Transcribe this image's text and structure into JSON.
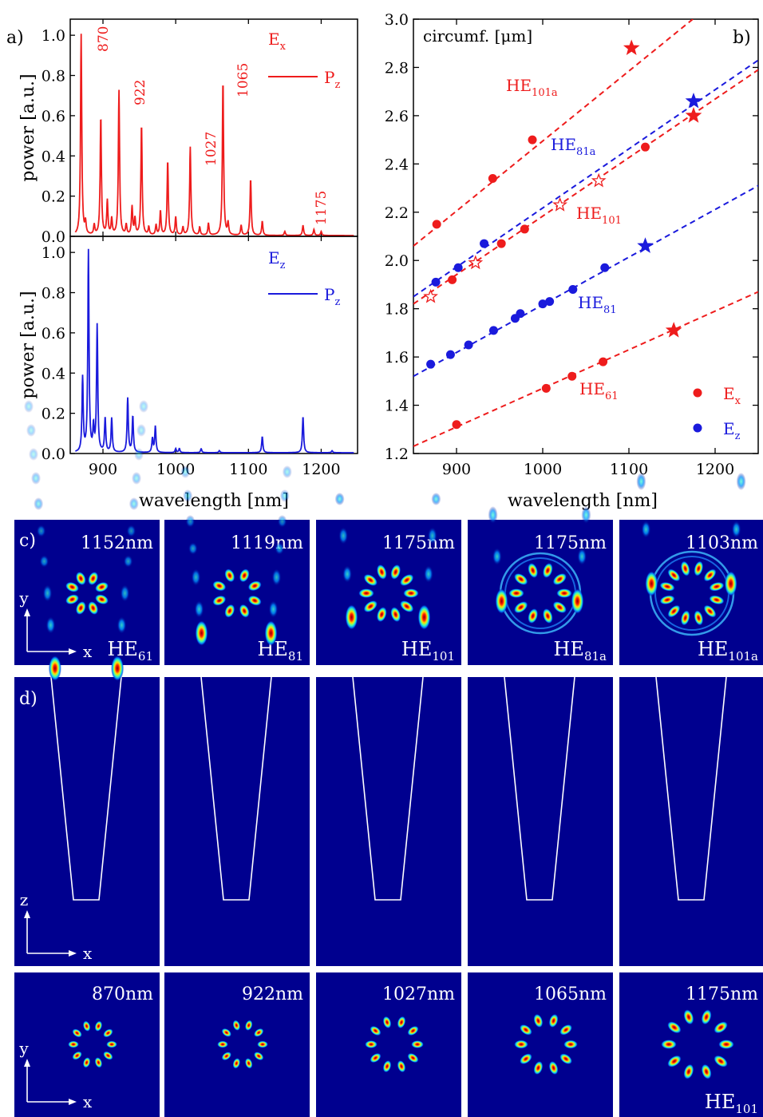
{
  "colors": {
    "red": "#ee1c1c",
    "blue": "#1a1adc",
    "navy": "#00008f",
    "white": "#ffffff"
  },
  "chart_data": [
    {
      "type": "line",
      "panel": "a",
      "panel_label": "a)",
      "field_label": "E",
      "field_sub": "x",
      "legend": "P",
      "legend_sub": "z",
      "xlabel": "wavelength [nm]",
      "ylabel": "power [a.u.]",
      "xlim": [
        855,
        1250
      ],
      "ylim": [
        0,
        1.08
      ],
      "yticks": [
        "0.0",
        "0.2",
        "0.4",
        "0.6",
        "0.8",
        "1.0"
      ],
      "series": [
        {
          "peaks": [
            [
              870,
              1.0
            ],
            [
              876,
              0.06
            ],
            [
              888,
              0.05
            ],
            [
              897,
              0.59
            ],
            [
              906,
              0.17
            ],
            [
              912,
              0.08
            ],
            [
              922,
              0.72
            ],
            [
              932,
              0.05
            ],
            [
              940,
              0.14
            ],
            [
              944,
              0.08
            ],
            [
              953,
              0.55
            ],
            [
              963,
              0.04
            ],
            [
              973,
              0.05
            ],
            [
              979,
              0.12
            ],
            [
              989,
              0.37
            ],
            [
              1000,
              0.09
            ],
            [
              1010,
              0.04
            ],
            [
              1020,
              0.44
            ],
            [
              1033,
              0.04
            ],
            [
              1045,
              0.06
            ],
            [
              1065,
              0.77
            ],
            [
              1072,
              0.06
            ],
            [
              1090,
              0.05
            ],
            [
              1103,
              0.28
            ],
            [
              1119,
              0.07
            ],
            [
              1150,
              0.02
            ],
            [
              1175,
              0.05
            ],
            [
              1190,
              0.03
            ],
            [
              1200,
              0.02
            ]
          ]
        }
      ],
      "annotations": [
        "870",
        "922",
        "1027",
        "1065",
        "1175"
      ]
    },
    {
      "type": "line",
      "panel": "a-lower",
      "field_label": "E",
      "field_sub": "z",
      "legend": "P",
      "legend_sub": "z",
      "xlabel": "wavelength [nm]",
      "ylabel": "power [a.u.]",
      "xlim": [
        855,
        1250
      ],
      "ylim": [
        0,
        1.08
      ],
      "xticks": [
        "900",
        "1000",
        "1100",
        "1200"
      ],
      "yticks": [
        "0.0",
        "0.2",
        "0.4",
        "0.6",
        "0.8",
        "1.0"
      ],
      "series": [
        {
          "peaks": [
            [
              872,
              0.37
            ],
            [
              880,
              1.0
            ],
            [
              887,
              0.12
            ],
            [
              892,
              0.63
            ],
            [
              903,
              0.17
            ],
            [
              912,
              0.17
            ],
            [
              934,
              0.27
            ],
            [
              941,
              0.18
            ],
            [
              968,
              0.07
            ],
            [
              972,
              0.13
            ],
            [
              1000,
              0.02
            ],
            [
              1005,
              0.02
            ],
            [
              1035,
              0.02
            ],
            [
              1060,
              0.01
            ],
            [
              1119,
              0.08
            ],
            [
              1175,
              0.18
            ],
            [
              1215,
              0.01
            ]
          ]
        }
      ]
    },
    {
      "type": "scatter",
      "panel": "b",
      "panel_label": "b)",
      "ylabel": "circumf. [μm]",
      "xlabel": "wavelength [nm]",
      "xlim": [
        850,
        1250
      ],
      "ylim": [
        1.2,
        3.0
      ],
      "xticks": [
        "900",
        "1000",
        "1100",
        "1200"
      ],
      "yticks": [
        "1.2",
        "1.4",
        "1.6",
        "1.8",
        "2.0",
        "2.2",
        "2.4",
        "2.6",
        "2.8",
        "3.0"
      ],
      "legend": [
        {
          "label": "E",
          "sub": "x",
          "color": "red"
        },
        {
          "label": "E",
          "sub": "z",
          "color": "blue"
        }
      ],
      "series": [
        {
          "name": "HE",
          "sub": "101a",
          "color": "red",
          "line": [
            [
              850,
              2.06
            ],
            [
              1250,
              3.22
            ]
          ],
          "points": [
            [
              877,
              2.15
            ],
            [
              942,
              2.34
            ],
            [
              988,
              2.5
            ]
          ],
          "stars": [
            [
              1103,
              2.88
            ]
          ],
          "open_stars": []
        },
        {
          "name": "HE",
          "sub": "81a",
          "color": "blue",
          "line": [
            [
              850,
              1.85
            ],
            [
              1250,
              2.83
            ]
          ],
          "points": [
            [
              876,
              1.91
            ],
            [
              902,
              1.97
            ],
            [
              932,
              2.07
            ]
          ],
          "stars": [
            [
              1175,
              2.66
            ]
          ],
          "open_stars": []
        },
        {
          "name": "HE",
          "sub": "101",
          "color": "red",
          "line": [
            [
              850,
              1.82
            ],
            [
              1250,
              2.79
            ]
          ],
          "points": [
            [
              895,
              1.92
            ],
            [
              952,
              2.07
            ],
            [
              979,
              2.13
            ],
            [
              1119,
              2.47
            ]
          ],
          "stars": [
            [
              1175,
              2.6
            ]
          ],
          "open_stars": [
            [
              870,
              1.85
            ],
            [
              922,
              1.99
            ],
            [
              1020,
              2.23
            ],
            [
              1065,
              2.33
            ]
          ]
        },
        {
          "name": "HE",
          "sub": "81",
          "color": "blue",
          "line": [
            [
              850,
              1.52
            ],
            [
              1250,
              2.31
            ]
          ],
          "points": [
            [
              870,
              1.57
            ],
            [
              893,
              1.61
            ],
            [
              914,
              1.65
            ],
            [
              943,
              1.71
            ],
            [
              968,
              1.76
            ],
            [
              974,
              1.78
            ],
            [
              1000,
              1.82
            ],
            [
              1008,
              1.83
            ],
            [
              1035,
              1.88
            ],
            [
              1072,
              1.97
            ]
          ],
          "stars": [
            [
              1119,
              2.06
            ]
          ],
          "open_stars": []
        },
        {
          "name": "HE",
          "sub": "61",
          "color": "red",
          "line": [
            [
              850,
              1.23
            ],
            [
              1250,
              1.87
            ]
          ],
          "points": [
            [
              900,
              1.32
            ],
            [
              1004,
              1.47
            ],
            [
              1034,
              1.52
            ],
            [
              1070,
              1.58
            ]
          ],
          "stars": [
            [
              1152,
              1.71
            ]
          ],
          "open_stars": []
        }
      ]
    }
  ],
  "panel_c": {
    "label": "c)",
    "axis_y": "y",
    "axis_x": "x",
    "tiles": [
      {
        "wavelength": "1152nm",
        "mode": "HE",
        "sub": "61",
        "lobes": 8
      },
      {
        "wavelength": "1119nm",
        "mode": "HE",
        "sub": "81",
        "lobes": 8
      },
      {
        "wavelength": "1175nm",
        "mode": "HE",
        "sub": "101",
        "lobes": 10
      },
      {
        "wavelength": "1175nm",
        "mode": "HE",
        "sub": "81a",
        "lobes": 10
      },
      {
        "wavelength": "1103nm",
        "mode": "HE",
        "sub": "101a",
        "lobes": 12
      }
    ]
  },
  "panel_d": {
    "label": "d)",
    "axis_z": "z",
    "axis_x": "x",
    "bottom_axis_y": "y",
    "bottom_axis_x": "x",
    "bottom_mode": "HE",
    "bottom_sub": "101",
    "tiles": [
      {
        "wavelength": "870nm",
        "spots": 10
      },
      {
        "wavelength": "922nm",
        "spots": 10
      },
      {
        "wavelength": "1027nm",
        "spots": 10
      },
      {
        "wavelength": "1065nm",
        "spots": 10
      },
      {
        "wavelength": "1175nm",
        "spots": 10
      }
    ]
  }
}
